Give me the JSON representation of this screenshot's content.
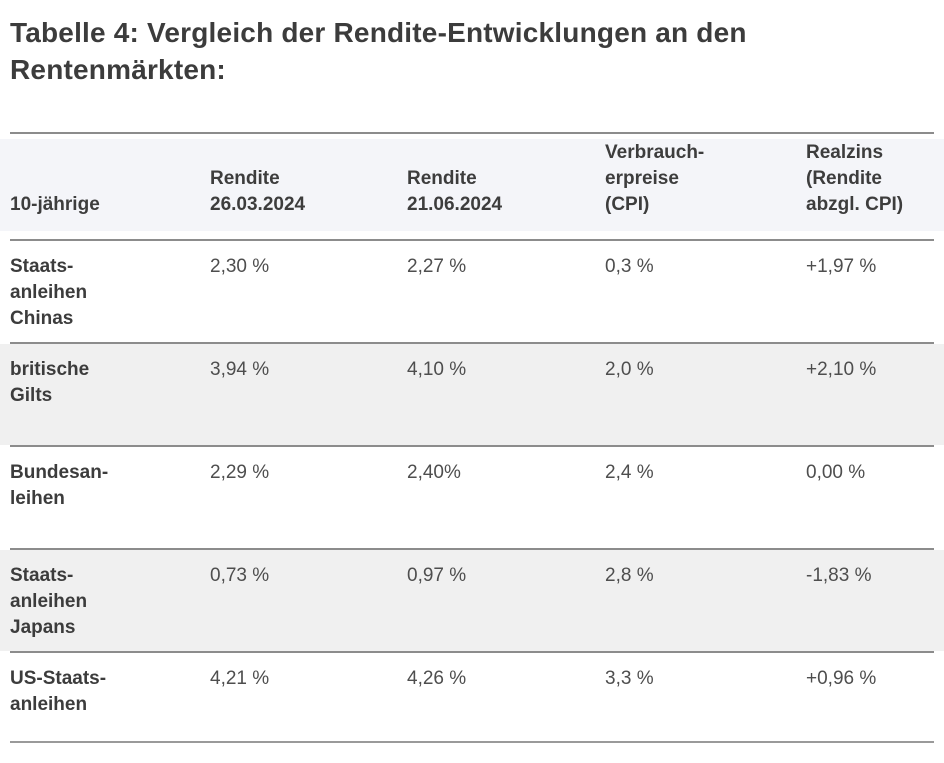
{
  "page": {
    "title": "Tabelle 4: Vergleich der Rendite-Entwicklungen an den Rentenmärkten:"
  },
  "colors": {
    "positive": "#46ab4e",
    "negative": "#d9404a",
    "neutral": "#4e4e4e",
    "header_background": "#f4f5f9",
    "stripe_background": "#f0f0f0",
    "rule": "#8c8c8c"
  },
  "table": {
    "headers": {
      "col1": "10-jährige",
      "col2": "Rendite\n26.03.2024",
      "col3": "Rendite\n21.06.2024",
      "col4": "Verbrauch-\nerpreise\n(CPI)",
      "col5": "Realzins\n(Rendite\nabzgl. CPI)"
    },
    "rows": [
      {
        "label": "Staats-\nanleihen\nChinas",
        "rendite_2603": "2,30 %",
        "rendite_2106": "2,27 %",
        "cpi": "0,3 %",
        "realzins": "+1,97 %",
        "realzins_color": "positive"
      },
      {
        "label": "britische\nGilts",
        "rendite_2603": "3,94 %",
        "rendite_2106": "4,10 %",
        "cpi": "2,0 %",
        "realzins": "+2,10 %",
        "realzins_color": "positive"
      },
      {
        "label": "Bundesan-\nleihen",
        "rendite_2603": "2,29 %",
        "rendite_2106": "2,40%",
        "cpi": "2,4 %",
        "realzins": "0,00 %",
        "realzins_color": "neutral"
      },
      {
        "label": "Staats-\nanleihen\nJapans",
        "rendite_2603": "0,73 %",
        "rendite_2106": "0,97 %",
        "cpi": "2,8 %",
        "realzins": "-1,83 %",
        "realzins_color": "negative"
      },
      {
        "label": "US-Staats-\nanleihen",
        "rendite_2603": "4,21 %",
        "rendite_2106": "4,26 %",
        "cpi": "3,3 %",
        "realzins": "+0,96 %",
        "realzins_color": "positive"
      }
    ]
  },
  "chart_data": {
    "type": "table",
    "title": "Tabelle 4: Vergleich der Rendite-Entwicklungen an den Rentenmärkten:",
    "columns": [
      "10-jährige",
      "Rendite 26.03.2024",
      "Rendite 21.06.2024",
      "Verbraucherpreise (CPI)",
      "Realzins (Rendite abzgl. CPI)"
    ],
    "rows": [
      [
        "Staatsanleihen Chinas",
        "2,30 %",
        "2,27 %",
        "0,3 %",
        "+1,97 %"
      ],
      [
        "britische Gilts",
        "3,94 %",
        "4,10 %",
        "2,0 %",
        "+2,10 %"
      ],
      [
        "Bundesanleihen",
        "2,29 %",
        "2,40%",
        "2,4 %",
        "0,00 %"
      ],
      [
        "Staatsanleihen Japans",
        "0,73 %",
        "0,97 %",
        "2,8 %",
        "-1,83 %"
      ],
      [
        "US-Staatsanleihen",
        "4,21 %",
        "4,26 %",
        "3,3 %",
        "+0,96 %"
      ]
    ],
    "numeric": {
      "rendite_26_03_2024_pct": [
        2.3,
        3.94,
        2.29,
        0.73,
        4.21
      ],
      "rendite_21_06_2024_pct": [
        2.27,
        4.1,
        2.4,
        0.97,
        4.26
      ],
      "cpi_pct": [
        0.3,
        2.0,
        2.4,
        2.8,
        3.3
      ],
      "realzins_pct": [
        1.97,
        2.1,
        0.0,
        -1.83,
        0.96
      ]
    }
  }
}
